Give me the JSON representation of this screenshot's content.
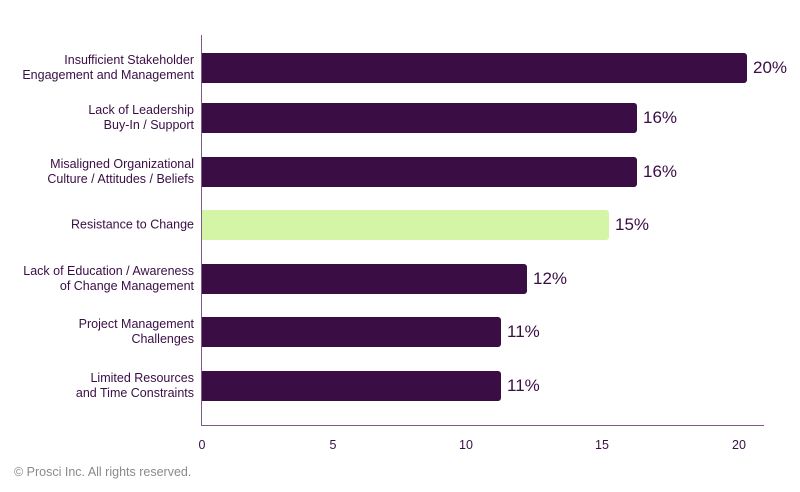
{
  "chart_data": {
    "type": "bar",
    "orientation": "horizontal",
    "title": "",
    "xlabel": "",
    "ylabel": "",
    "xlim": [
      0,
      21
    ],
    "grid": false,
    "categories": [
      "Insufficient Stakeholder\nEngagement and Management",
      "Lack of Leadership\nBuy-In / Support",
      "Misaligned Organizational\nCulture / Attitudes / Beliefs",
      "Resistance to Change",
      "Lack of Education / Awareness\nof Change Management",
      "Project Management\nChallenges",
      "Limited Resources\nand Time Constraints"
    ],
    "values": [
      20,
      16,
      16,
      15,
      12,
      11,
      11
    ],
    "data_labels": [
      "20%",
      "16%",
      "16%",
      "15%",
      "12%",
      "11%",
      "11%"
    ],
    "highlight_index": 3,
    "x_ticks": [
      "0",
      "5",
      "10",
      "15",
      "20"
    ]
  },
  "colors": {
    "bar": "#3a0e45",
    "highlight_bar": "#d4f5a6",
    "axis": "#7a5a86",
    "text": "#3a0e45",
    "footer": "#8a8a8a"
  },
  "footer": {
    "copyright": "© Prosci Inc. All rights reserved."
  }
}
